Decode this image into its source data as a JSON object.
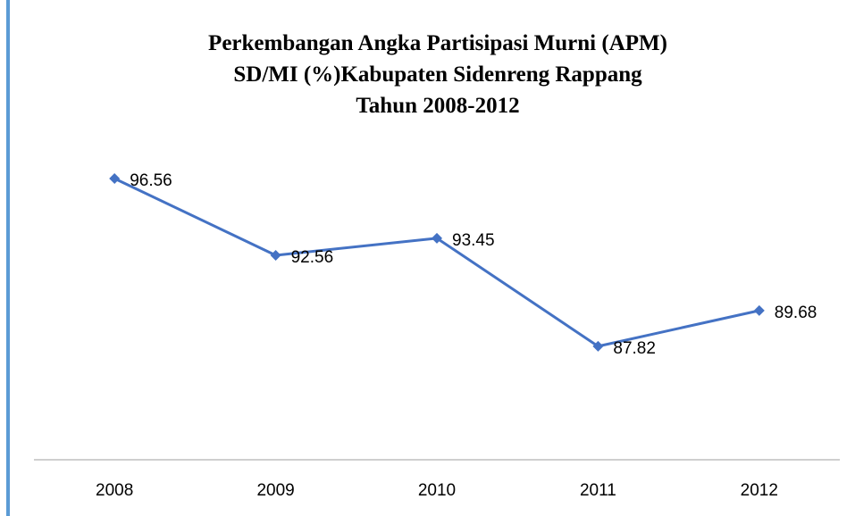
{
  "chart_data": {
    "type": "line",
    "title": [
      "Perkembangan Angka Partisipasi Murni (APM)",
      "SD/MI (%)Kabupaten Sidenreng Rappang",
      "Tahun 2008-2012"
    ],
    "categories": [
      "2008",
      "2009",
      "2010",
      "2011",
      "2012"
    ],
    "values": [
      96.56,
      92.56,
      93.45,
      87.82,
      89.68
    ],
    "color": "#4472c4",
    "ylim": [
      82,
      100
    ]
  }
}
